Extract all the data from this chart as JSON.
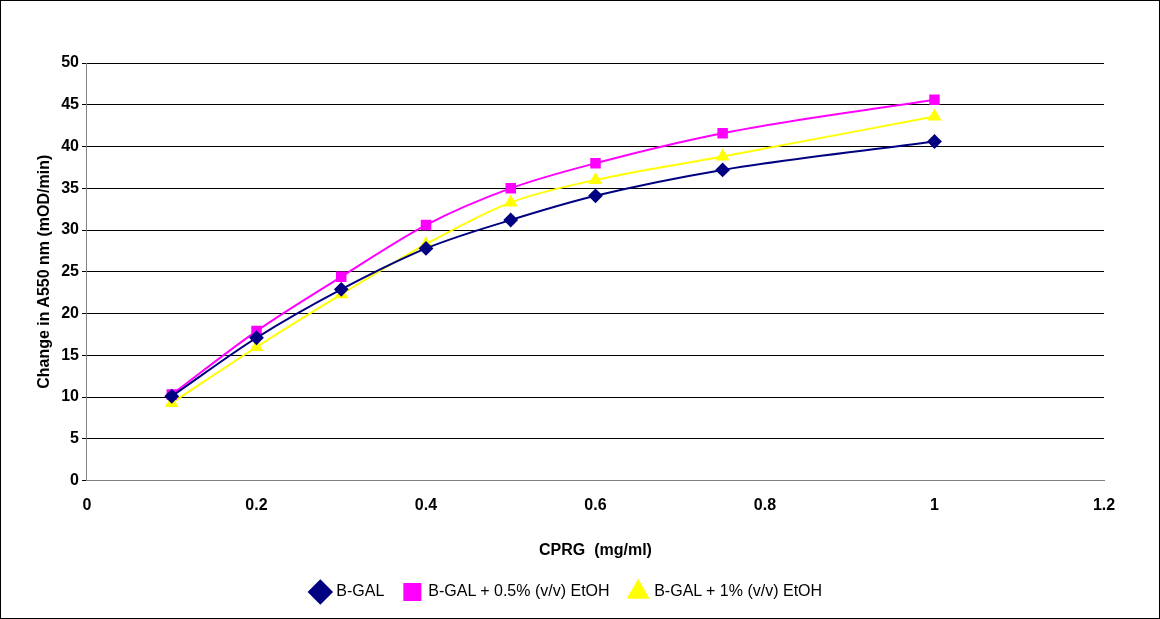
{
  "chart_data": {
    "type": "line",
    "xlabel": "CPRG  (mg/ml)",
    "ylabel": "Change in A550 nm (mOD/min)",
    "x": [
      0.1,
      0.2,
      0.3,
      0.4,
      0.5,
      0.6,
      0.75,
      1
    ],
    "xlim": [
      0,
      1.2
    ],
    "xticks": [
      0,
      0.2,
      0.4,
      0.6,
      0.8,
      1,
      1.2
    ],
    "ylim": [
      0,
      50
    ],
    "yticks": [
      0,
      5,
      10,
      15,
      20,
      25,
      30,
      35,
      40,
      45,
      50
    ],
    "grid": "y",
    "legend": "bottom",
    "series": [
      {
        "name": "B-GAL",
        "color": "#000080",
        "marker": "diamond",
        "values": [
          10.1,
          17.1,
          22.9,
          27.8,
          31.2,
          34.1,
          37.2,
          40.6
        ]
      },
      {
        "name": "B-GAL + 0.5% (v/v) EtOH",
        "color": "#ff00ff",
        "marker": "square",
        "values": [
          10.3,
          17.9,
          24.4,
          30.6,
          35.0,
          38.0,
          41.6,
          45.6
        ]
      },
      {
        "name": "B-GAL + 1% (v/v) EtOH",
        "color": "#ffff00",
        "marker": "triangle",
        "values": [
          9.3,
          16.0,
          22.3,
          28.3,
          33.3,
          36.0,
          38.8,
          43.6
        ]
      }
    ]
  }
}
